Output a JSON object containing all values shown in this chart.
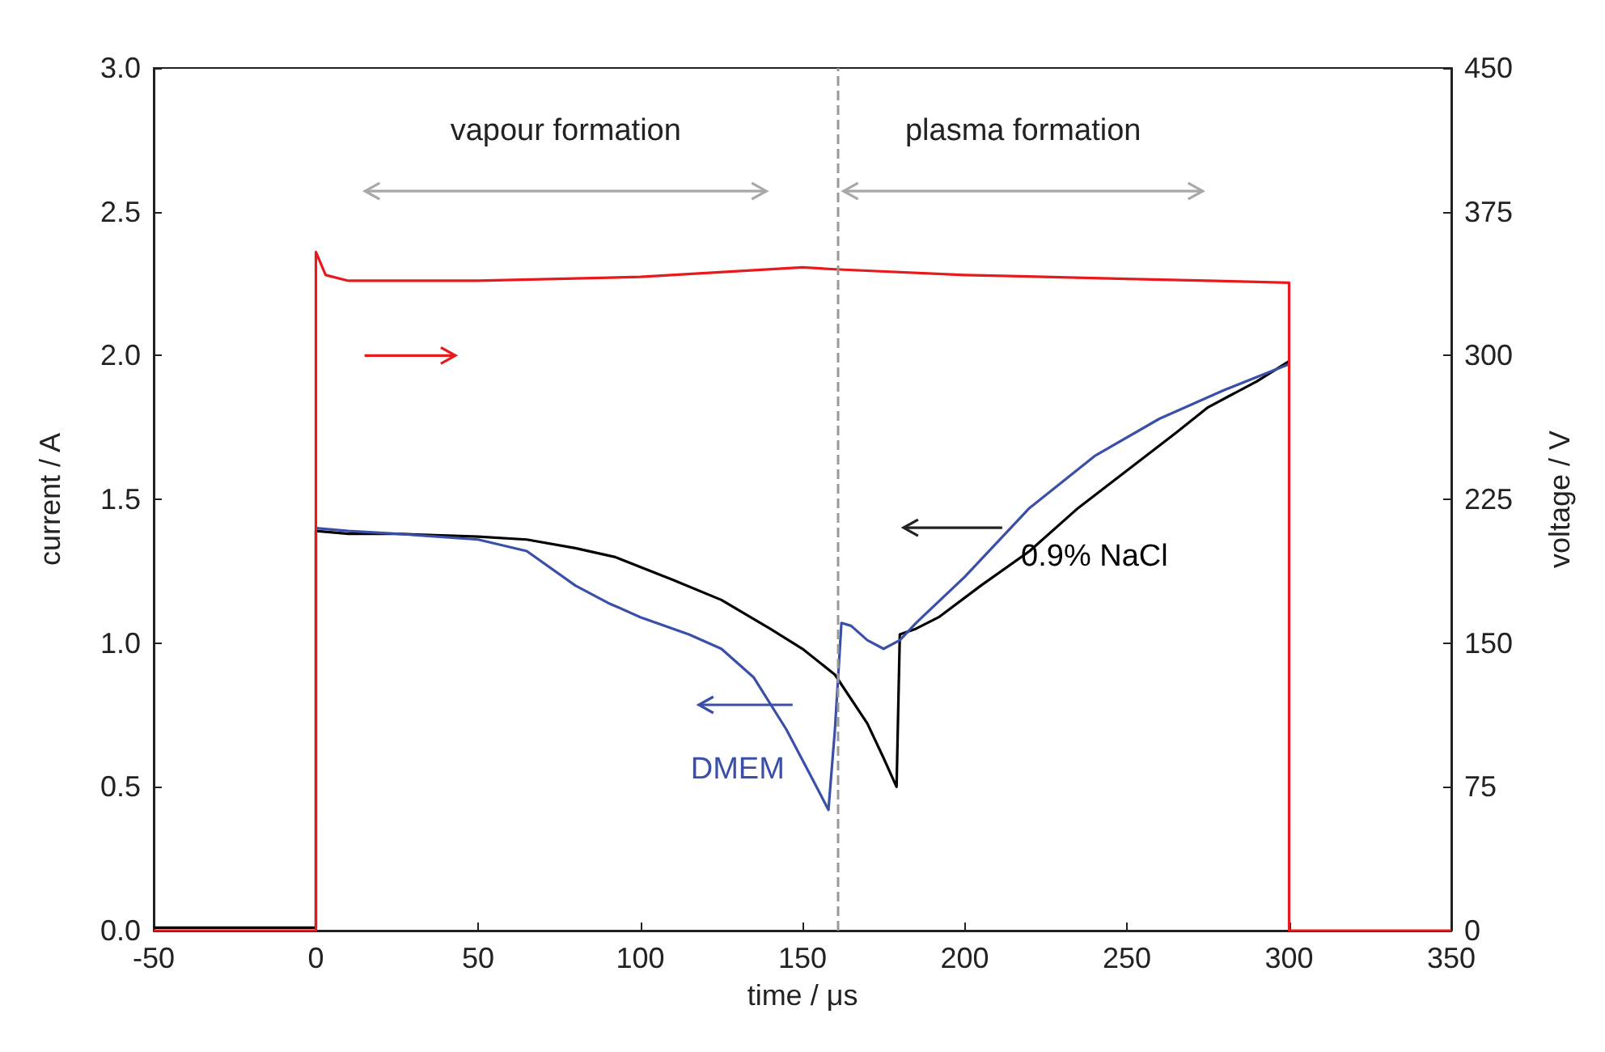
{
  "chart_data": {
    "type": "line",
    "xlabel": "time / μs",
    "ylabel": "current / A",
    "y2label": "voltage / V",
    "xlim": [
      -50,
      350
    ],
    "xticks": [
      -50,
      0,
      50,
      100,
      150,
      200,
      250,
      300,
      350
    ],
    "ylim": [
      0,
      3
    ],
    "yticks": [
      {
        "value": 0,
        "label": "0.0"
      },
      {
        "value": 0.5,
        "label": "0.5"
      },
      {
        "value": 1,
        "label": "1.0"
      },
      {
        "value": 1.5,
        "label": "1.5"
      },
      {
        "value": 2,
        "label": "2.0"
      },
      {
        "value": 2.5,
        "label": "2.5"
      },
      {
        "value": 3,
        "label": "3.0"
      }
    ],
    "y2lim": [
      0,
      450
    ],
    "y2ticks": [
      0,
      75,
      150,
      225,
      300,
      375,
      450
    ],
    "grid": false,
    "legend": false,
    "marker": "none",
    "line_style": "solid",
    "series": [
      {
        "name": "0.9% NaCl",
        "color": "#000000",
        "x": [
          -50,
          0,
          0,
          10,
          25,
          50,
          65,
          80,
          92,
          110,
          125,
          140,
          150,
          160,
          170,
          175,
          179,
          180,
          185,
          192,
          205,
          220,
          235,
          250,
          265,
          275,
          290,
          300
        ],
        "values": [
          0.01,
          0.01,
          1.39,
          1.38,
          1.38,
          1.37,
          1.36,
          1.33,
          1.3,
          1.22,
          1.15,
          1.05,
          0.98,
          0.89,
          0.72,
          0.6,
          0.5,
          1.03,
          1.05,
          1.09,
          1.2,
          1.32,
          1.47,
          1.6,
          1.73,
          1.82,
          1.91,
          1.98
        ]
      },
      {
        "name": "DMEM",
        "color": "#3a4fa8",
        "x": [
          0,
          0,
          10,
          25,
          50,
          65,
          80,
          90,
          100,
          115,
          125,
          135,
          145,
          152,
          158,
          160,
          162,
          165,
          170,
          175,
          180,
          185,
          200,
          220,
          240,
          260,
          280,
          300
        ],
        "values": [
          0.01,
          1.4,
          1.39,
          1.38,
          1.36,
          1.32,
          1.2,
          1.14,
          1.09,
          1.03,
          0.98,
          0.88,
          0.7,
          0.55,
          0.42,
          0.7,
          1.07,
          1.06,
          1.01,
          0.98,
          1.01,
          1.07,
          1.23,
          1.47,
          1.65,
          1.78,
          1.88,
          1.97
        ]
      },
      {
        "color": "#e8191d",
        "axis": "y2",
        "x": [
          -50,
          0,
          0,
          3,
          10,
          50,
          100,
          150,
          160,
          200,
          250,
          300,
          300,
          350
        ],
        "values": [
          0,
          0,
          354,
          342,
          339,
          339,
          341,
          346,
          345,
          342,
          340,
          338,
          0,
          0
        ]
      }
    ],
    "ref_lines": [
      {
        "axis": "x",
        "value": 161,
        "color": "#999999",
        "line_style": "dashed"
      }
    ],
    "annotations": [
      "vapour formation",
      "plasma formation"
    ]
  }
}
